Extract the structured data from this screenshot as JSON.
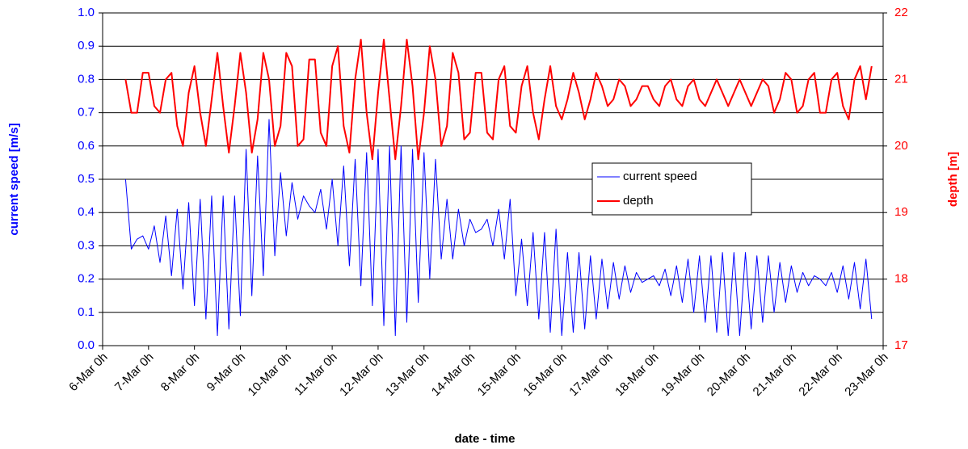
{
  "chart_data": {
    "type": "line",
    "xlabel": "date - time",
    "ylabel": "current speed [m/s]",
    "y2label": "depth [m]",
    "xlim": [
      6,
      23
    ],
    "xticks": [
      {
        "value": 6,
        "label": "6-Mar 0h"
      },
      {
        "value": 7,
        "label": "7-Mar 0h"
      },
      {
        "value": 8,
        "label": "8-Mar 0h"
      },
      {
        "value": 9,
        "label": "9-Mar 0h"
      },
      {
        "value": 10,
        "label": "10-Mar 0h"
      },
      {
        "value": 11,
        "label": "11-Mar 0h"
      },
      {
        "value": 12,
        "label": "12-Mar 0h"
      },
      {
        "value": 13,
        "label": "13-Mar 0h"
      },
      {
        "value": 14,
        "label": "14-Mar 0h"
      },
      {
        "value": 15,
        "label": "15-Mar 0h"
      },
      {
        "value": 16,
        "label": "16-Mar 0h"
      },
      {
        "value": 17,
        "label": "17-Mar 0h"
      },
      {
        "value": 18,
        "label": "18-Mar 0h"
      },
      {
        "value": 19,
        "label": "19-Mar 0h"
      },
      {
        "value": 20,
        "label": "20-Mar 0h"
      },
      {
        "value": 21,
        "label": "21-Mar 0h"
      },
      {
        "value": 22,
        "label": "22-Mar 0h"
      },
      {
        "value": 23,
        "label": "23-Mar 0h"
      }
    ],
    "ylim": [
      0,
      1
    ],
    "yticks": [
      {
        "value": 0,
        "label": "0.0"
      },
      0.1,
      0.2,
      0.3,
      0.4,
      0.5,
      0.6,
      0.7,
      0.8,
      0.9,
      {
        "value": 1,
        "label": "1.0"
      }
    ],
    "y2lim": [
      17,
      22
    ],
    "y2ticks": [
      17,
      18,
      19,
      20,
      21,
      22
    ],
    "grid": true,
    "legend": "center right",
    "x": [
      6.5,
      6.625,
      6.75,
      6.875,
      7,
      7.125,
      7.25,
      7.375,
      7.5,
      7.625,
      7.75,
      7.875,
      8,
      8.125,
      8.25,
      8.375,
      8.5,
      8.625,
      8.75,
      8.875,
      9,
      9.125,
      9.25,
      9.375,
      9.5,
      9.625,
      9.75,
      9.875,
      10,
      10.125,
      10.25,
      10.375,
      10.5,
      10.625,
      10.75,
      10.875,
      11,
      11.125,
      11.25,
      11.375,
      11.5,
      11.625,
      11.75,
      11.875,
      12,
      12.125,
      12.25,
      12.375,
      12.5,
      12.625,
      12.75,
      12.875,
      13,
      13.125,
      13.25,
      13.375,
      13.5,
      13.625,
      13.75,
      13.875,
      14,
      14.125,
      14.25,
      14.375,
      14.5,
      14.625,
      14.75,
      14.875,
      15,
      15.125,
      15.25,
      15.375,
      15.5,
      15.625,
      15.75,
      15.875,
      16,
      16.125,
      16.25,
      16.375,
      16.5,
      16.625,
      16.75,
      16.875,
      17,
      17.125,
      17.25,
      17.375,
      17.5,
      17.625,
      17.75,
      17.875,
      18,
      18.125,
      18.25,
      18.375,
      18.5,
      18.625,
      18.75,
      18.875,
      19,
      19.125,
      19.25,
      19.375,
      19.5,
      19.625,
      19.75,
      19.875,
      20,
      20.125,
      20.25,
      20.375,
      20.5,
      20.625,
      20.75,
      20.875,
      21,
      21.125,
      21.25,
      21.375,
      21.5,
      21.625,
      21.75,
      21.875,
      22,
      22.125,
      22.25,
      22.375,
      22.5,
      22.625,
      22.75
    ],
    "series": [
      {
        "name": "current speed",
        "color": "#0000ff",
        "axis": "y",
        "values": [
          0.5,
          0.29,
          0.32,
          0.33,
          0.29,
          0.36,
          0.25,
          0.39,
          0.21,
          0.41,
          0.17,
          0.43,
          0.12,
          0.44,
          0.08,
          0.45,
          0.03,
          0.45,
          0.05,
          0.45,
          0.09,
          0.59,
          0.15,
          0.57,
          0.21,
          0.68,
          0.27,
          0.52,
          0.33,
          0.49,
          0.38,
          0.45,
          0.42,
          0.4,
          0.47,
          0.35,
          0.5,
          0.3,
          0.54,
          0.24,
          0.56,
          0.18,
          0.58,
          0.12,
          0.59,
          0.06,
          0.6,
          0.03,
          0.6,
          0.07,
          0.59,
          0.13,
          0.58,
          0.2,
          0.56,
          0.26,
          0.44,
          0.26,
          0.41,
          0.3,
          0.38,
          0.34,
          0.35,
          0.38,
          0.3,
          0.41,
          0.26,
          0.44,
          0.15,
          0.32,
          0.12,
          0.34,
          0.08,
          0.34,
          0.04,
          0.35,
          0.03,
          0.28,
          0.04,
          0.28,
          0.05,
          0.27,
          0.08,
          0.26,
          0.11,
          0.25,
          0.14,
          0.24,
          0.16,
          0.22,
          0.19,
          0.2,
          0.21,
          0.18,
          0.23,
          0.15,
          0.24,
          0.13,
          0.26,
          0.1,
          0.27,
          0.07,
          0.27,
          0.04,
          0.28,
          0.03,
          0.28,
          0.03,
          0.28,
          0.05,
          0.27,
          0.07,
          0.27,
          0.1,
          0.25,
          0.13,
          0.24,
          0.16,
          0.22,
          0.18,
          0.21,
          0.2,
          0.18,
          0.22,
          0.16,
          0.24,
          0.14,
          0.25,
          0.11,
          0.26,
          0.08
        ]
      },
      {
        "name": "depth",
        "color": "#ff0000",
        "axis": "y2",
        "values": [
          21.0,
          20.5,
          20.5,
          21.1,
          21.1,
          20.6,
          20.5,
          21.0,
          21.1,
          20.3,
          20.0,
          20.8,
          21.2,
          20.5,
          20.0,
          20.7,
          21.4,
          20.6,
          19.9,
          20.6,
          21.4,
          20.8,
          19.9,
          20.4,
          21.4,
          21.0,
          20.0,
          20.3,
          21.4,
          21.2,
          20.0,
          20.1,
          21.3,
          21.3,
          20.2,
          20.0,
          21.2,
          21.5,
          20.3,
          19.9,
          21.0,
          21.6,
          20.5,
          19.8,
          20.8,
          21.6,
          20.7,
          19.8,
          20.6,
          21.6,
          20.9,
          19.8,
          20.5,
          21.5,
          21.0,
          20.0,
          20.3,
          21.4,
          21.1,
          20.1,
          20.2,
          21.1,
          21.1,
          20.2,
          20.1,
          21.0,
          21.2,
          20.3,
          20.2,
          20.9,
          21.2,
          20.5,
          20.1,
          20.7,
          21.2,
          20.6,
          20.4,
          20.7,
          21.1,
          20.8,
          20.4,
          20.7,
          21.1,
          20.9,
          20.6,
          20.7,
          21.0,
          20.9,
          20.6,
          20.7,
          20.9,
          20.9,
          20.7,
          20.6,
          20.9,
          21.0,
          20.7,
          20.6,
          20.9,
          21.0,
          20.7,
          20.6,
          20.8,
          21.0,
          20.8,
          20.6,
          20.8,
          21.0,
          20.8,
          20.6,
          20.8,
          21.0,
          20.9,
          20.5,
          20.7,
          21.1,
          21.0,
          20.5,
          20.6,
          21.0,
          21.1,
          20.5,
          20.5,
          21.0,
          21.1,
          20.6,
          20.4,
          21.0,
          21.2,
          20.7,
          21.2
        ]
      }
    ]
  }
}
